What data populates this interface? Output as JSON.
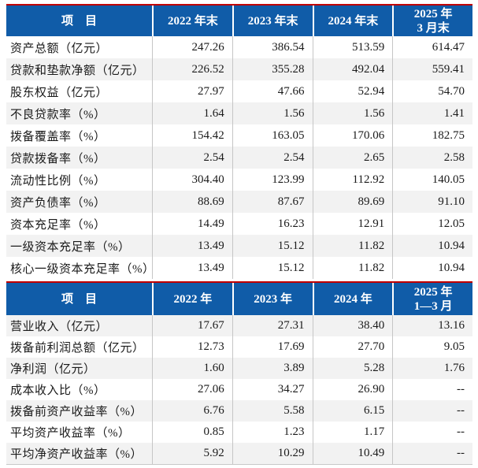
{
  "theme": {
    "header_bg": "#105CA8",
    "header_text": "#FFFFFF",
    "accent_red": "#C00000",
    "row_alt_bg": "#F2F2F2",
    "grid_line": "#C6C6C6",
    "body_text": "#1A1A1A"
  },
  "table1": {
    "headers": [
      "项　目",
      "2022 年末",
      "2023 年末",
      "2024 年末",
      "2025 年\n3 月末"
    ],
    "rows": [
      {
        "label": "资产总额（亿元）",
        "values": [
          "247.26",
          "386.54",
          "513.59",
          "614.47"
        ]
      },
      {
        "label": "贷款和垫款净额（亿元）",
        "values": [
          "226.52",
          "355.28",
          "492.04",
          "559.41"
        ]
      },
      {
        "label": "股东权益（亿元）",
        "values": [
          "27.97",
          "47.66",
          "52.94",
          "54.70"
        ]
      },
      {
        "label": "不良贷款率（%）",
        "values": [
          "1.64",
          "1.56",
          "1.56",
          "1.41"
        ]
      },
      {
        "label": "拨备覆盖率（%）",
        "values": [
          "154.42",
          "163.05",
          "170.06",
          "182.75"
        ]
      },
      {
        "label": "贷款拨备率（%）",
        "values": [
          "2.54",
          "2.54",
          "2.65",
          "2.58"
        ]
      },
      {
        "label": "流动性比例（%）",
        "values": [
          "304.40",
          "123.99",
          "112.92",
          "140.05"
        ]
      },
      {
        "label": "资产负债率（%）",
        "values": [
          "88.69",
          "87.67",
          "89.69",
          "91.10"
        ]
      },
      {
        "label": "资本充足率（%）",
        "values": [
          "14.49",
          "16.23",
          "12.91",
          "12.05"
        ]
      },
      {
        "label": "一级资本充足率（%）",
        "values": [
          "13.49",
          "15.12",
          "11.82",
          "10.94"
        ]
      },
      {
        "label": "核心一级资本充足率（%）",
        "values": [
          "13.49",
          "15.12",
          "11.82",
          "10.94"
        ]
      }
    ]
  },
  "table2": {
    "headers": [
      "项　目",
      "2022 年",
      "2023 年",
      "2024 年",
      "2025 年\n1—3 月"
    ],
    "rows": [
      {
        "label": "营业收入（亿元）",
        "values": [
          "17.67",
          "27.31",
          "38.40",
          "13.16"
        ]
      },
      {
        "label": "拨备前利润总额（亿元）",
        "values": [
          "12.73",
          "17.69",
          "27.70",
          "9.05"
        ]
      },
      {
        "label": "净利润（亿元）",
        "values": [
          "1.60",
          "3.89",
          "5.28",
          "1.76"
        ]
      },
      {
        "label": "成本收入比（%）",
        "values": [
          "27.06",
          "34.27",
          "26.90",
          "--"
        ]
      },
      {
        "label": "拨备前资产收益率（%）",
        "values": [
          "6.76",
          "5.58",
          "6.15",
          "--"
        ]
      },
      {
        "label": "平均资产收益率（%）",
        "values": [
          "0.85",
          "1.23",
          "1.17",
          "--"
        ]
      },
      {
        "label": "平均净资产收益率（%）",
        "values": [
          "5.92",
          "10.29",
          "10.49",
          "--"
        ]
      }
    ]
  }
}
